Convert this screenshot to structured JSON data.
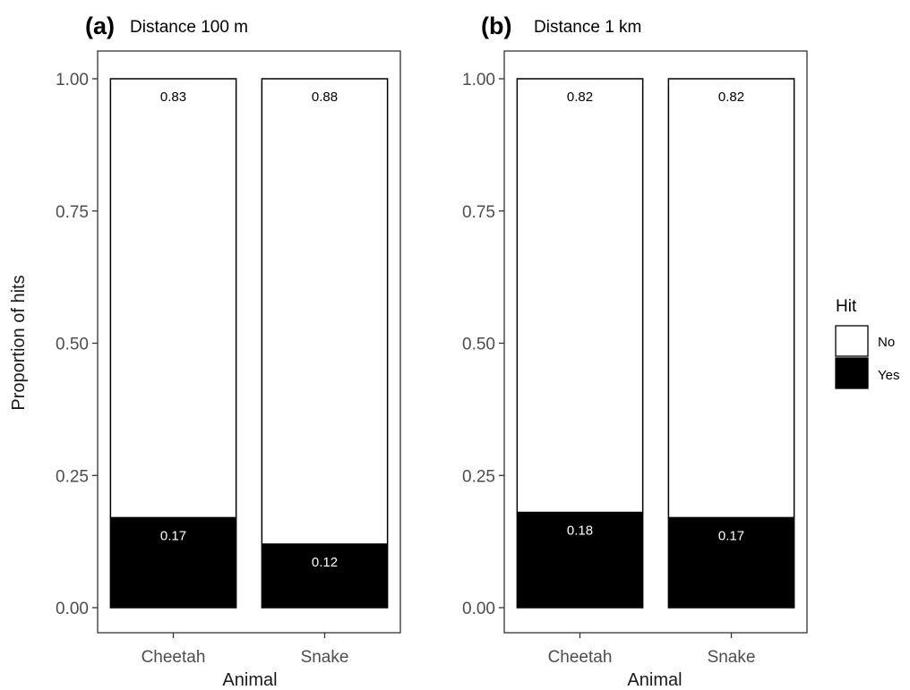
{
  "chart_data": [
    {
      "type": "bar",
      "stacked": true,
      "panel": "(a)",
      "title": "Distance 100 m",
      "xlabel": "Animal",
      "ylabel": "Proportion of hits",
      "ylim": [
        0,
        1
      ],
      "yticks": [
        "0.00",
        "0.25",
        "0.50",
        "0.75",
        "1.00"
      ],
      "categories": [
        "Cheetah",
        "Snake"
      ],
      "series": [
        {
          "name": "No",
          "values": [
            0.83,
            0.88
          ],
          "labels": [
            "0.83",
            "0.88"
          ],
          "color": "#ffffff"
        },
        {
          "name": "Yes",
          "values": [
            0.17,
            0.12
          ],
          "labels": [
            "0.17",
            "0.12"
          ],
          "color": "#000000"
        }
      ],
      "grid": false
    },
    {
      "type": "bar",
      "stacked": true,
      "panel": "(b)",
      "title": "Distance 1 km",
      "xlabel": "Animal",
      "ylabel": "",
      "ylim": [
        0,
        1
      ],
      "yticks": [
        "0.00",
        "0.25",
        "0.50",
        "0.75",
        "1.00"
      ],
      "categories": [
        "Cheetah",
        "Snake"
      ],
      "series": [
        {
          "name": "No",
          "values": [
            0.82,
            0.82
          ],
          "labels": [
            "0.82",
            "0.82"
          ],
          "color": "#ffffff"
        },
        {
          "name": "Yes",
          "values": [
            0.18,
            0.17
          ],
          "labels": [
            "0.18",
            "0.17"
          ],
          "color": "#000000"
        }
      ],
      "grid": false
    }
  ],
  "legend": {
    "title": "Hit",
    "position": "right",
    "items": [
      {
        "label": "No",
        "color": "#ffffff"
      },
      {
        "label": "Yes",
        "color": "#000000"
      }
    ]
  }
}
